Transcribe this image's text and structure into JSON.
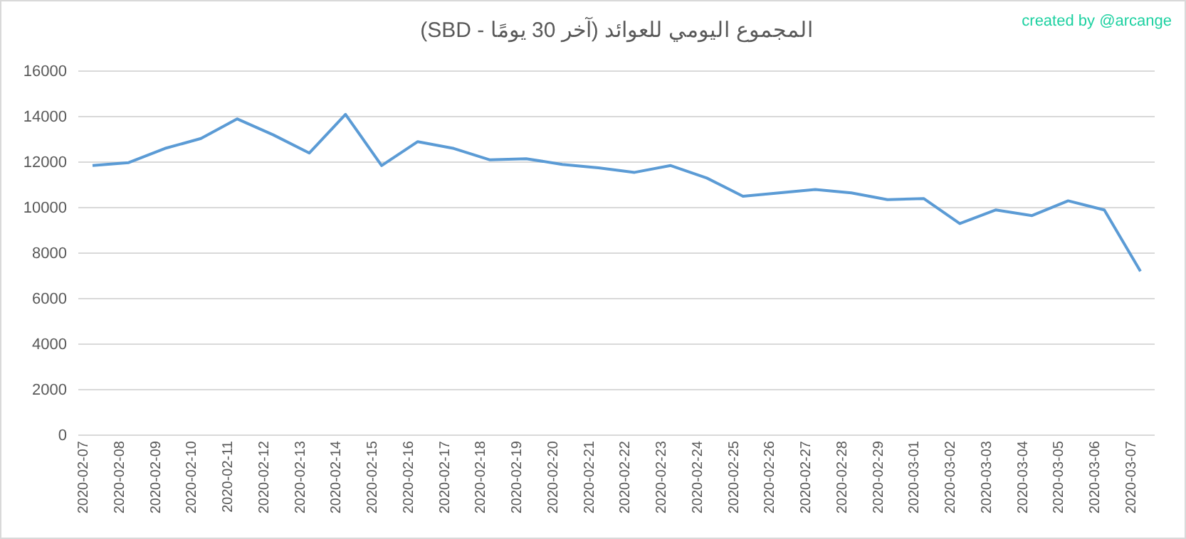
{
  "chart_data": {
    "type": "line",
    "title": "المجموع اليومي للعوائد (آخر 30 يومًا - SBD)",
    "annotations": [
      "created by @arcange"
    ],
    "categories": [
      "2020-02-07",
      "2020-02-08",
      "2020-02-09",
      "2020-02-10",
      "2020-02-11",
      "2020-02-12",
      "2020-02-13",
      "2020-02-14",
      "2020-02-15",
      "2020-02-16",
      "2020-02-17",
      "2020-02-18",
      "2020-02-19",
      "2020-02-20",
      "2020-02-21",
      "2020-02-22",
      "2020-02-23",
      "2020-02-24",
      "2020-02-25",
      "2020-02-26",
      "2020-02-27",
      "2020-02-28",
      "2020-02-29",
      "2020-03-01",
      "2020-03-02",
      "2020-03-03",
      "2020-03-04",
      "2020-03-05",
      "2020-03-06",
      "2020-03-07"
    ],
    "series": [
      {
        "color": "#5b9bd5",
        "values": [
          11850,
          11980,
          12600,
          13040,
          13900,
          13200,
          12400,
          14100,
          11850,
          12900,
          12600,
          12100,
          12150,
          11900,
          11750,
          11550,
          11850,
          11300,
          10500,
          10650,
          10800,
          10650,
          10350,
          10400,
          9300,
          9900,
          9650,
          10300,
          9900,
          7200
        ]
      }
    ],
    "ylim": [
      0,
      16000
    ],
    "yticks": [
      0,
      2000,
      4000,
      6000,
      8000,
      10000,
      12000,
      14000,
      16000
    ],
    "grid": "y",
    "marker": "none",
    "line_style": "solid"
  }
}
